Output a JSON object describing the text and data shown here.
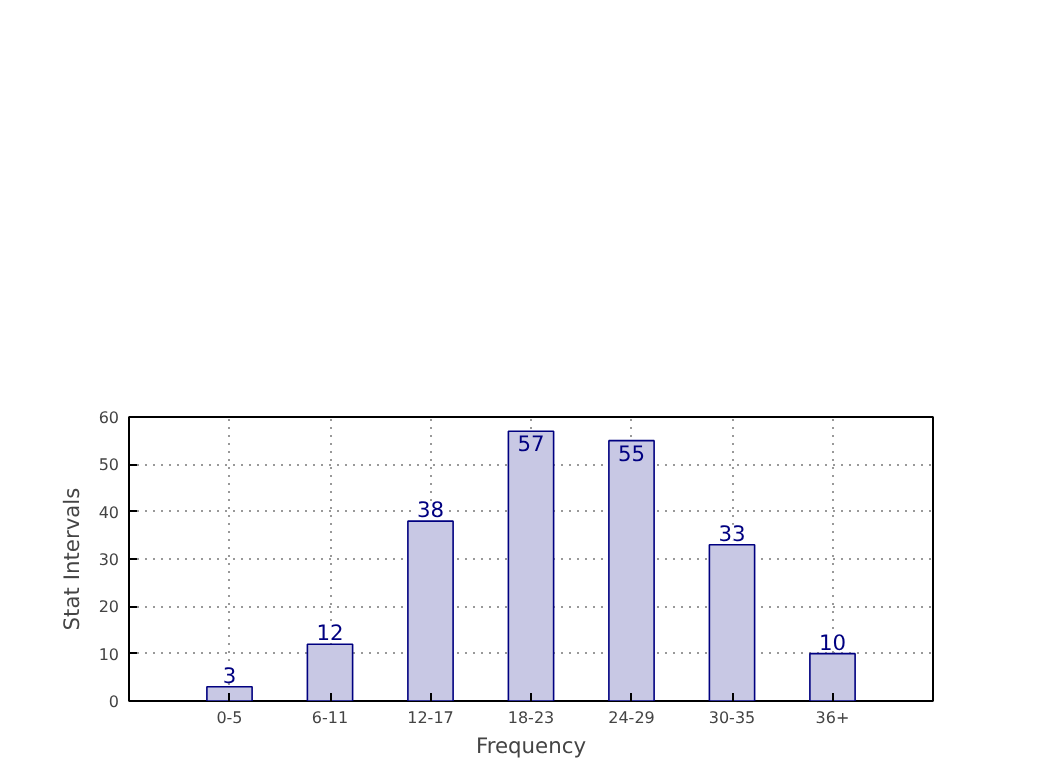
{
  "chart_data": {
    "type": "bar",
    "xlabel": "Frequency",
    "ylabel": "Stat Intervals",
    "categories": [
      "0-5",
      "6-11",
      "12-17",
      "18-23",
      "24-29",
      "30-35",
      "36+"
    ],
    "values": [
      3,
      12,
      38,
      57,
      55,
      33,
      10
    ],
    "color": "#c8c8e4",
    "ylim": [
      0,
      60
    ],
    "yticks": [
      0,
      10,
      20,
      30,
      40,
      50,
      60
    ],
    "grid": true,
    "data_labels": true
  }
}
